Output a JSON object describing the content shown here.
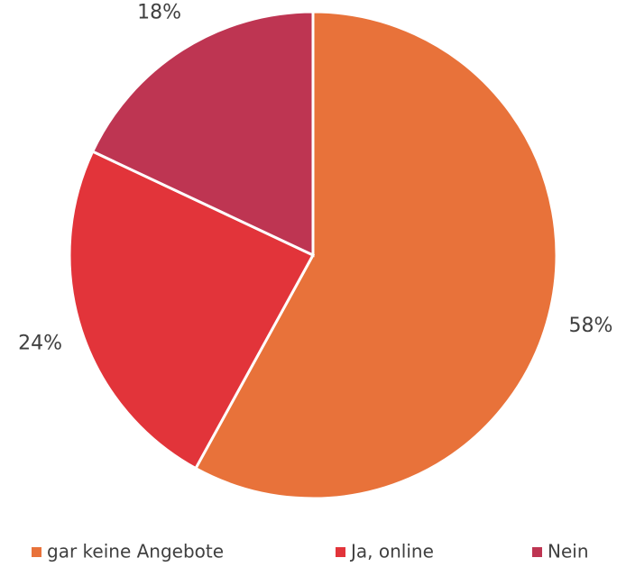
{
  "chart_data": {
    "type": "pie",
    "categories": [
      "gar keine Angebote",
      "Ja, online",
      "Nein"
    ],
    "values": [
      58,
      24,
      18
    ],
    "value_labels": [
      "58%",
      "24%",
      "18%"
    ],
    "colors": [
      "#e8723a",
      "#e2343a",
      "#be3552"
    ],
    "legend": "bottom"
  }
}
